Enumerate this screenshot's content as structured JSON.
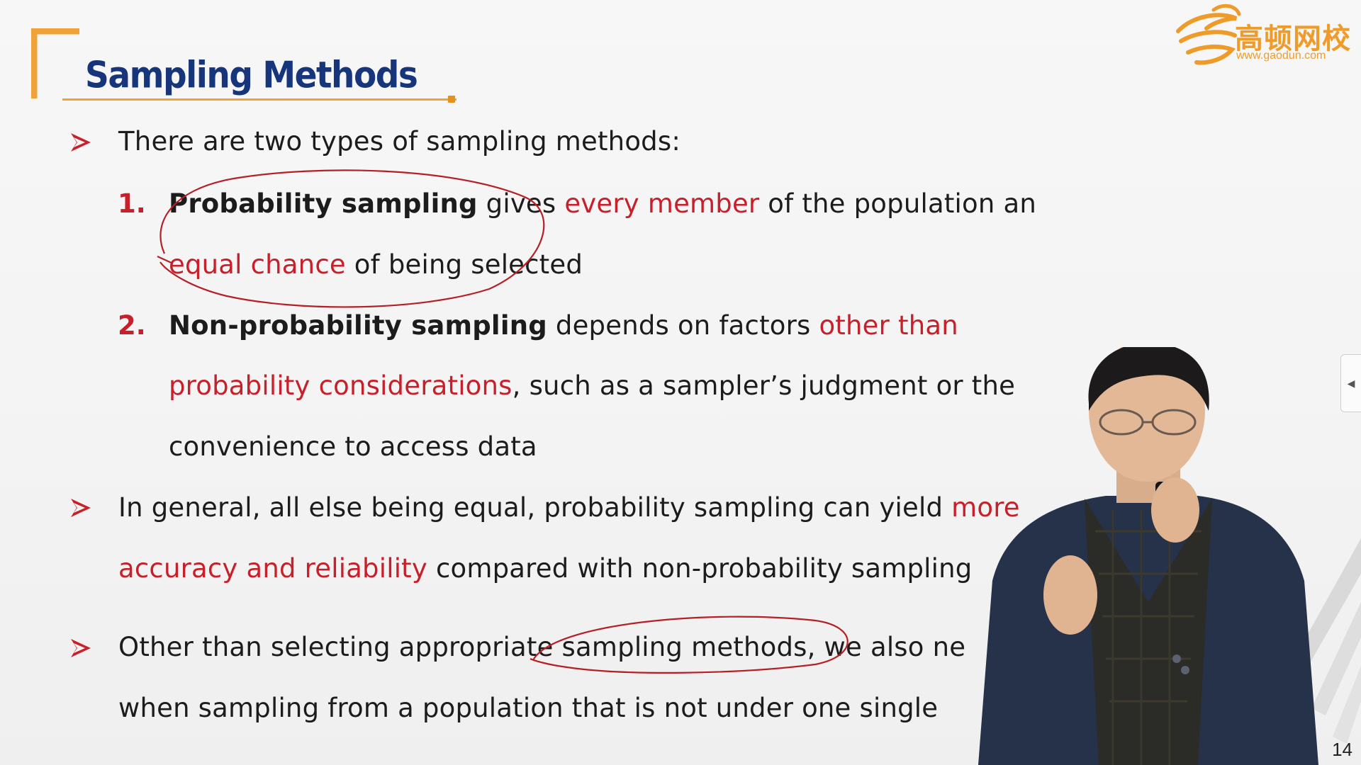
{
  "slide": {
    "title": "Sampling Methods",
    "logo": {
      "name_cn": "高顿网校",
      "url": "www.gaodun.com",
      "icon": "gaodun-logo-icon"
    },
    "bullets": [
      {
        "icon": "arrow-bullet-icon",
        "text": "There are two types of sampling methods:"
      }
    ],
    "items": [
      {
        "number": "1.",
        "line1": {
          "bold": "Probability sampling",
          "t1": " gives ",
          "red": "every member",
          "t2": " of the population an"
        },
        "line2": {
          "red": "equal chance",
          "t1": " of being selected"
        }
      },
      {
        "number": "2.",
        "line1": {
          "bold": "Non-probability sampling",
          "t1": " depends on factors ",
          "red": "other than"
        },
        "line2": {
          "red": "probability considerations",
          "t1": ", such as a sampler’s judgment or the"
        },
        "line3": {
          "t1": "convenience to access data"
        }
      }
    ],
    "bullet2": {
      "icon": "arrow-bullet-icon",
      "line1_t1": "In general, all else being equal, probability sampling can yield ",
      "line1_red": "more",
      "line2_red": "accuracy and reliability",
      "line2_t1": " compared with non-probability sampling"
    },
    "bullet3": {
      "icon": "arrow-bullet-icon",
      "line1": "Other than selecting appropriate sampling methods, we also ne",
      "line2": "when sampling from a population that is not under one single"
    },
    "page_number": "14"
  },
  "controls": {
    "side_tab_icon": "collapse-left-arrow-icon",
    "side_tab_glyph": "◀"
  },
  "colors": {
    "title": "#16357a",
    "accent_orange": "#f0a23a",
    "highlight_red": "#c8202a",
    "text": "#1c1c1c"
  }
}
